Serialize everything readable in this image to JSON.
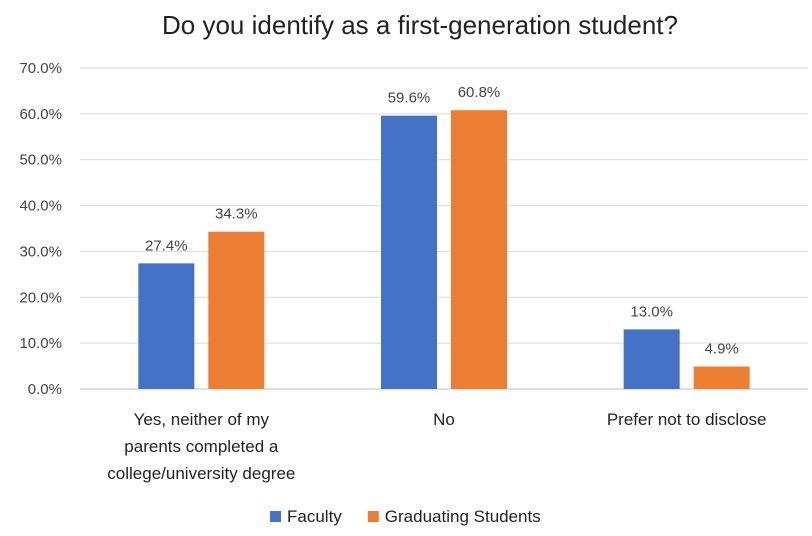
{
  "chart_data": {
    "type": "bar",
    "title": "Do you identify as a first-generation student?",
    "categories": [
      [
        "Yes, neither of my",
        "parents completed a",
        "college/university degree"
      ],
      [
        "No"
      ],
      [
        "Prefer not to disclose"
      ]
    ],
    "series": [
      {
        "name": "Faculty",
        "values": [
          27.4,
          59.6,
          13.0
        ],
        "labels": [
          "27.4%",
          "59.6%",
          "13.0%"
        ],
        "color": "#4472c4"
      },
      {
        "name": "Graduating Students",
        "values": [
          34.3,
          60.8,
          4.9
        ],
        "labels": [
          "34.3%",
          "60.8%",
          "4.9%"
        ],
        "color": "#ed7d31"
      }
    ],
    "yticks": [
      "0.0%",
      "10.0%",
      "20.0%",
      "30.0%",
      "40.0%",
      "50.0%",
      "60.0%",
      "70.0%"
    ],
    "ylim": [
      0,
      70
    ],
    "grid": true,
    "legend": "bottom"
  }
}
